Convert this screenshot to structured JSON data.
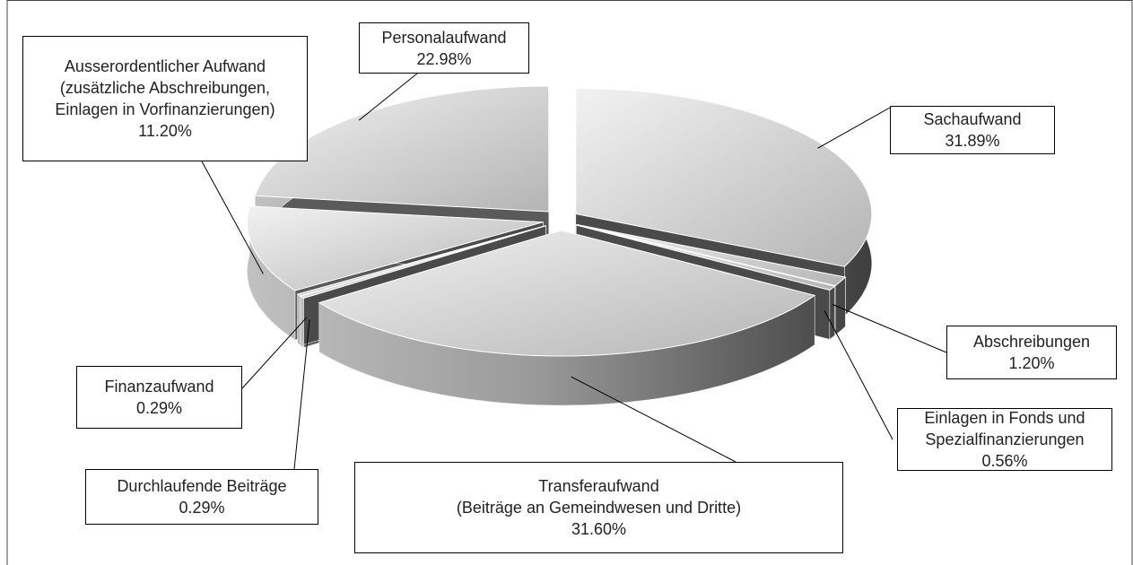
{
  "chart_data": {
    "type": "pie",
    "categories": [
      "Sachaufwand",
      "Abschreibungen",
      "Einlagen in Fonds und\nSpezialfinanzierungen",
      "Transferaufwand\n(Beiträge an Gemeindwesen und Dritte)",
      "Durchlaufende Beiträge",
      "Finanzaufwand",
      "Ausserordentlicher Aufwand\n(zusätzliche Abschreibungen,\nEinlagen in Vorfinanzierungen)",
      "Personalaufwand"
    ],
    "values": [
      31.89,
      1.2,
      0.56,
      31.6,
      0.29,
      0.29,
      11.2,
      22.98
    ],
    "value_labels": [
      "31.89%",
      "1.20%",
      "0.56%",
      "31.60%",
      "0.29%",
      "0.29%",
      "11.20%",
      "22.98%"
    ],
    "color": "#c8c8c8"
  }
}
